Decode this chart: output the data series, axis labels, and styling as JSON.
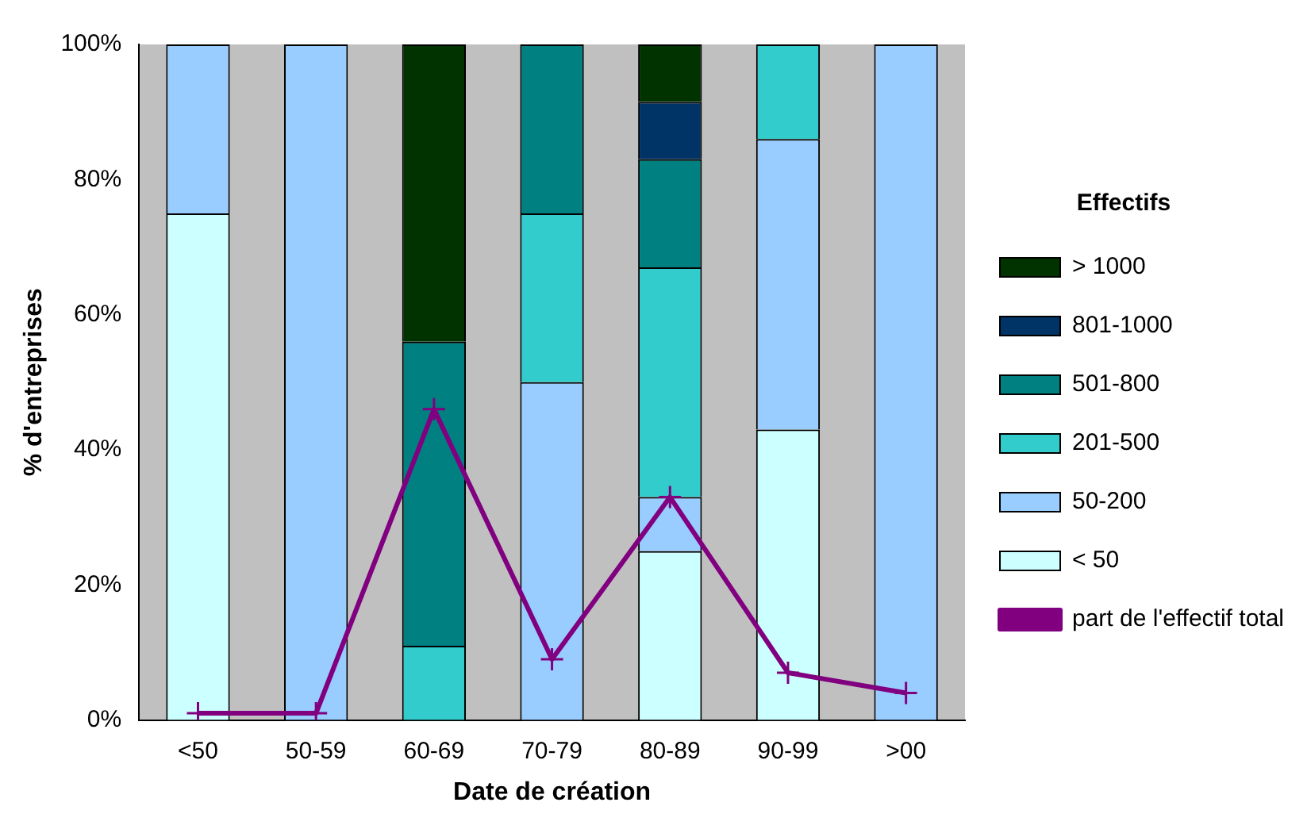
{
  "chart_data": {
    "type": "bar",
    "stacked": true,
    "xlabel": "Date de création",
    "ylabel": "% d'entreprises",
    "legend_title": "Effectifs",
    "categories": [
      "<50",
      "50-59",
      "60-69",
      "70-79",
      "80-89",
      "90-99",
      ">00"
    ],
    "series": [
      {
        "name": "part de l'effectif total",
        "type": "line",
        "color": "#800080",
        "marker": "cross",
        "values": [
          1,
          1,
          46,
          9,
          33,
          7,
          4
        ]
      },
      {
        "name": "< 50",
        "color": "#ccffff",
        "values": [
          75,
          null,
          null,
          null,
          25,
          43,
          null
        ]
      },
      {
        "name": "50-200",
        "color": "#99ccff",
        "values": [
          25,
          100,
          null,
          50,
          8,
          43,
          100
        ]
      },
      {
        "name": "201-500",
        "color": "#33cccc",
        "values": [
          null,
          null,
          11,
          25,
          34,
          14,
          null
        ]
      },
      {
        "name": "501-800",
        "color": "#008080",
        "values": [
          null,
          null,
          45,
          25,
          16,
          null,
          null
        ]
      },
      {
        "name": "801-1000",
        "color": "#003366",
        "values": [
          null,
          null,
          null,
          null,
          8.5,
          null,
          null
        ]
      },
      {
        "name": "> 1000",
        "color": "#003300",
        "values": [
          null,
          null,
          44,
          null,
          8.5,
          null,
          null
        ]
      }
    ],
    "ylim": [
      0,
      100
    ],
    "yticks": [
      {
        "value": 0,
        "label": "0%"
      },
      {
        "value": 20,
        "label": "20%"
      },
      {
        "value": 40,
        "label": "40%"
      },
      {
        "value": 60,
        "label": "60%"
      },
      {
        "value": 80,
        "label": "80%"
      },
      {
        "value": 100,
        "label": "100%"
      }
    ],
    "grid": false,
    "legend": "right"
  }
}
